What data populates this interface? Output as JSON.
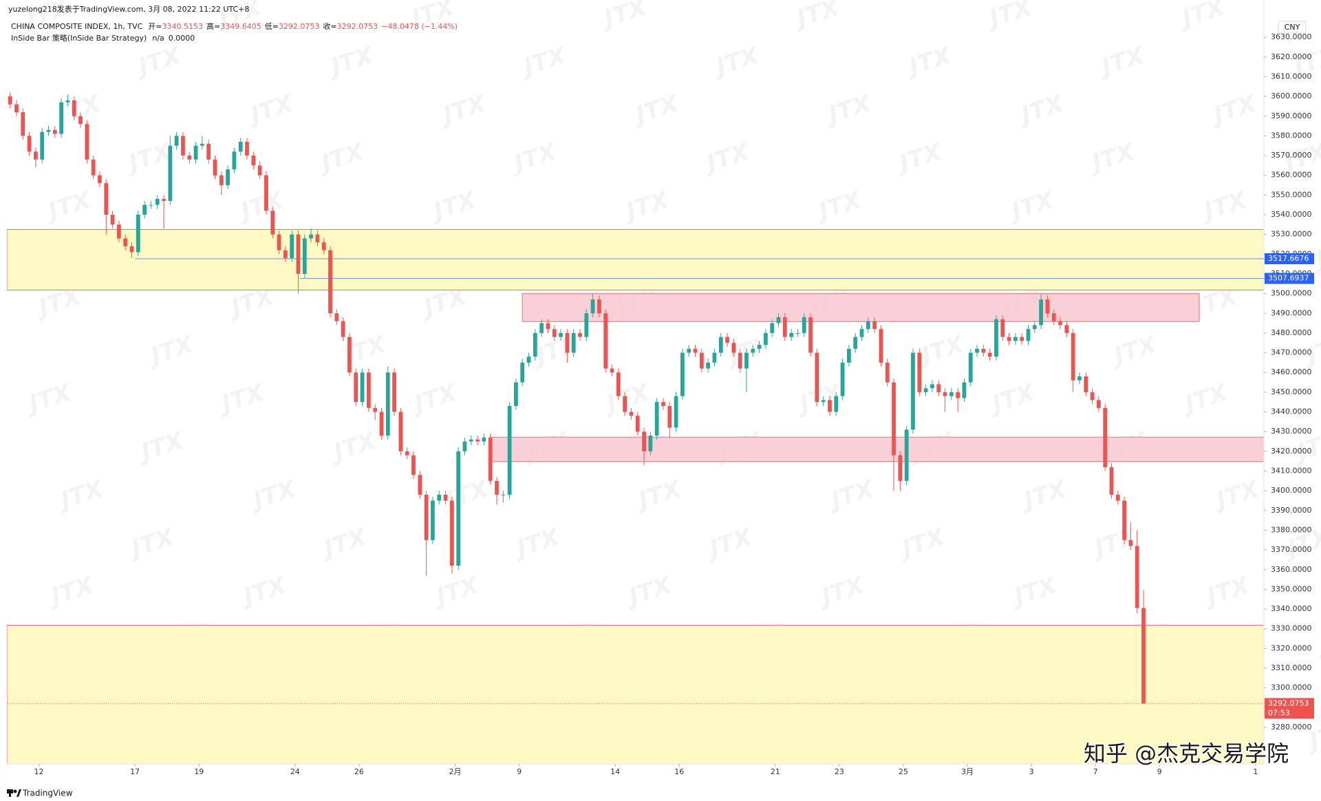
{
  "header": {
    "publisher": "yuzelong218发表于TradingView.com, 3月 08, 2022 11:22 UTC+8",
    "strategy": "InSide Bar 策略(InSide Bar Strategy)",
    "strategy_status": "n/a",
    "strategy_value": {
      "value": 0,
      "label": "0.0000"
    }
  },
  "footer": {
    "logo": "TradingView",
    "credit": "知乎 @杰克交易学院"
  },
  "chart_data": {
    "type": "candlestick",
    "symbol": "CHINA COMPOSITE INDEX, 1h, TVC",
    "ohlc_labels": [
      "开=",
      "高=",
      "低=",
      "收="
    ],
    "change_label": "−48.0478 (−1.44%)",
    "currency": "CNY",
    "countdown": "07:53",
    "watermark": "JTX",
    "up_color": "#26a69a",
    "down_color": "#ef5350",
    "grid": false,
    "ohlc": [
      [
        3600,
        3602,
        3594,
        3596
      ],
      [
        3596,
        3598,
        3590,
        3592
      ],
      [
        3592,
        3594,
        3578,
        3580
      ],
      [
        3580,
        3582,
        3570,
        3572
      ],
      [
        3572,
        3574,
        3564,
        3568
      ],
      [
        3568,
        3584,
        3566,
        3582
      ],
      [
        3582,
        3585,
        3580,
        3583
      ],
      [
        3583,
        3585,
        3579,
        3581
      ],
      [
        3581,
        3599,
        3579,
        3597
      ],
      [
        3597,
        3601,
        3595,
        3598
      ],
      [
        3598,
        3600,
        3588,
        3590
      ],
      [
        3590,
        3592,
        3584,
        3586
      ],
      [
        3586,
        3588,
        3566,
        3568
      ],
      [
        3568,
        3570,
        3558,
        3560
      ],
      [
        3560,
        3562,
        3554,
        3556
      ],
      [
        3556,
        3558,
        3530,
        3540
      ],
      [
        3540,
        3542,
        3533,
        3535
      ],
      [
        3535,
        3537,
        3526,
        3528
      ],
      [
        3528,
        3530,
        3522,
        3524
      ],
      [
        3524,
        3526,
        3518,
        3521
      ],
      [
        3521,
        3542,
        3519,
        3540
      ],
      [
        3540,
        3547,
        3538,
        3545
      ],
      [
        3545,
        3547,
        3543,
        3545
      ],
      [
        3545,
        3550,
        3543,
        3548
      ],
      [
        3548,
        3550,
        3533,
        3547
      ],
      [
        3547,
        3580,
        3545,
        3575
      ],
      [
        3575,
        3582,
        3573,
        3580
      ],
      [
        3580,
        3582,
        3568,
        3570
      ],
      [
        3570,
        3572,
        3566,
        3568
      ],
      [
        3568,
        3577,
        3566,
        3575
      ],
      [
        3575,
        3580,
        3573,
        3576
      ],
      [
        3576,
        3578,
        3566,
        3568
      ],
      [
        3568,
        3570,
        3558,
        3560
      ],
      [
        3560,
        3562,
        3550,
        3555
      ],
      [
        3555,
        3565,
        3553,
        3563
      ],
      [
        3563,
        3574,
        3561,
        3572
      ],
      [
        3572,
        3579,
        3570,
        3577
      ],
      [
        3577,
        3579,
        3568,
        3570
      ],
      [
        3570,
        3572,
        3563,
        3565
      ],
      [
        3565,
        3567,
        3558,
        3560
      ],
      [
        3560,
        3562,
        3540,
        3542
      ],
      [
        3542,
        3544,
        3528,
        3530
      ],
      [
        3530,
        3532,
        3520,
        3522
      ],
      [
        3522,
        3524,
        3516,
        3518
      ],
      [
        3518,
        3532,
        3516,
        3530
      ],
      [
        3530,
        3532,
        3500,
        3510
      ],
      [
        3510,
        3530,
        3508,
        3528
      ],
      [
        3528,
        3533,
        3526,
        3530
      ],
      [
        3530,
        3532,
        3524,
        3526
      ],
      [
        3526,
        3528,
        3520,
        3522
      ],
      [
        3522,
        3524,
        3488,
        3490
      ],
      [
        3490,
        3492,
        3484,
        3486
      ],
      [
        3486,
        3488,
        3476,
        3478
      ],
      [
        3478,
        3480,
        3458,
        3460
      ],
      [
        3460,
        3462,
        3443,
        3445
      ],
      [
        3445,
        3462,
        3443,
        3460
      ],
      [
        3460,
        3462,
        3440,
        3442
      ],
      [
        3442,
        3444,
        3436,
        3440
      ],
      [
        3440,
        3442,
        3426,
        3428
      ],
      [
        3428,
        3463,
        3426,
        3460
      ],
      [
        3460,
        3462,
        3438,
        3440
      ],
      [
        3440,
        3442,
        3418,
        3420
      ],
      [
        3420,
        3422,
        3416,
        3418
      ],
      [
        3418,
        3420,
        3406,
        3408
      ],
      [
        3408,
        3410,
        3396,
        3398
      ],
      [
        3398,
        3400,
        3357,
        3375
      ],
      [
        3375,
        3397,
        3373,
        3395
      ],
      [
        3395,
        3400,
        3393,
        3398
      ],
      [
        3398,
        3400,
        3393,
        3395
      ],
      [
        3395,
        3397,
        3358,
        3362
      ],
      [
        3362,
        3422,
        3360,
        3420
      ],
      [
        3420,
        3427,
        3418,
        3425
      ],
      [
        3425,
        3428,
        3423,
        3426
      ],
      [
        3426,
        3428,
        3423,
        3425
      ],
      [
        3425,
        3429,
        3423,
        3427
      ],
      [
        3427,
        3429,
        3403,
        3405
      ],
      [
        3405,
        3407,
        3393,
        3398
      ],
      [
        3398,
        3400,
        3394,
        3398
      ],
      [
        3398,
        3445,
        3396,
        3443
      ],
      [
        3443,
        3457,
        3441,
        3455
      ],
      [
        3455,
        3467,
        3453,
        3465
      ],
      [
        3465,
        3470,
        3463,
        3468
      ],
      [
        3468,
        3482,
        3466,
        3480
      ],
      [
        3480,
        3487,
        3478,
        3485
      ],
      [
        3485,
        3487,
        3480,
        3482
      ],
      [
        3482,
        3484,
        3476,
        3478
      ],
      [
        3478,
        3482,
        3476,
        3480
      ],
      [
        3480,
        3482,
        3465,
        3470
      ],
      [
        3470,
        3482,
        3468,
        3480
      ],
      [
        3480,
        3482,
        3476,
        3478
      ],
      [
        3478,
        3492,
        3476,
        3490
      ],
      [
        3490,
        3500,
        3488,
        3497
      ],
      [
        3497,
        3499,
        3488,
        3490
      ],
      [
        3490,
        3492,
        3460,
        3462
      ],
      [
        3462,
        3464,
        3458,
        3460
      ],
      [
        3460,
        3462,
        3446,
        3448
      ],
      [
        3448,
        3450,
        3438,
        3440
      ],
      [
        3440,
        3442,
        3436,
        3438
      ],
      [
        3438,
        3440,
        3428,
        3430
      ],
      [
        3430,
        3432,
        3413,
        3420
      ],
      [
        3420,
        3430,
        3418,
        3428
      ],
      [
        3428,
        3447,
        3426,
        3445
      ],
      [
        3445,
        3447,
        3441,
        3443
      ],
      [
        3443,
        3445,
        3427,
        3432
      ],
      [
        3432,
        3450,
        3430,
        3448
      ],
      [
        3448,
        3472,
        3446,
        3470
      ],
      [
        3470,
        3474,
        3468,
        3472
      ],
      [
        3472,
        3474,
        3468,
        3470
      ],
      [
        3470,
        3472,
        3460,
        3462
      ],
      [
        3462,
        3467,
        3460,
        3465
      ],
      [
        3465,
        3472,
        3463,
        3470
      ],
      [
        3470,
        3480,
        3468,
        3478
      ],
      [
        3478,
        3480,
        3473,
        3475
      ],
      [
        3475,
        3477,
        3468,
        3470
      ],
      [
        3470,
        3472,
        3460,
        3462
      ],
      [
        3462,
        3472,
        3450,
        3470
      ],
      [
        3470,
        3474,
        3468,
        3472
      ],
      [
        3472,
        3476,
        3470,
        3474
      ],
      [
        3474,
        3482,
        3472,
        3480
      ],
      [
        3480,
        3487,
        3478,
        3485
      ],
      [
        3485,
        3490,
        3483,
        3488
      ],
      [
        3488,
        3490,
        3476,
        3478
      ],
      [
        3478,
        3482,
        3476,
        3480
      ],
      [
        3480,
        3482,
        3478,
        3480
      ],
      [
        3480,
        3490,
        3478,
        3488
      ],
      [
        3488,
        3490,
        3468,
        3470
      ],
      [
        3470,
        3472,
        3443,
        3445
      ],
      [
        3445,
        3448,
        3443,
        3446
      ],
      [
        3446,
        3448,
        3438,
        3440
      ],
      [
        3440,
        3450,
        3438,
        3448
      ],
      [
        3448,
        3467,
        3446,
        3465
      ],
      [
        3465,
        3474,
        3463,
        3472
      ],
      [
        3472,
        3480,
        3470,
        3478
      ],
      [
        3478,
        3484,
        3476,
        3482
      ],
      [
        3482,
        3488,
        3480,
        3486
      ],
      [
        3486,
        3488,
        3480,
        3482
      ],
      [
        3482,
        3484,
        3463,
        3465
      ],
      [
        3465,
        3467,
        3453,
        3455
      ],
      [
        3455,
        3457,
        3400,
        3418
      ],
      [
        3418,
        3420,
        3400,
        3405
      ],
      [
        3405,
        3433,
        3403,
        3431
      ],
      [
        3431,
        3472,
        3429,
        3470
      ],
      [
        3470,
        3472,
        3448,
        3450
      ],
      [
        3450,
        3454,
        3448,
        3452
      ],
      [
        3452,
        3456,
        3450,
        3454
      ],
      [
        3454,
        3456,
        3448,
        3450
      ],
      [
        3450,
        3452,
        3440,
        3448
      ],
      [
        3448,
        3452,
        3446,
        3450
      ],
      [
        3450,
        3452,
        3440,
        3447
      ],
      [
        3447,
        3457,
        3445,
        3455
      ],
      [
        3455,
        3472,
        3453,
        3470
      ],
      [
        3470,
        3474,
        3468,
        3472
      ],
      [
        3472,
        3474,
        3468,
        3470
      ],
      [
        3470,
        3472,
        3466,
        3468
      ],
      [
        3468,
        3489,
        3466,
        3487
      ],
      [
        3487,
        3489,
        3476,
        3478
      ],
      [
        3478,
        3480,
        3474,
        3476
      ],
      [
        3476,
        3480,
        3474,
        3478
      ],
      [
        3478,
        3480,
        3474,
        3476
      ],
      [
        3476,
        3484,
        3474,
        3482
      ],
      [
        3482,
        3486,
        3480,
        3484
      ],
      [
        3484,
        3500,
        3482,
        3497
      ],
      [
        3497,
        3499,
        3488,
        3490
      ],
      [
        3490,
        3492,
        3484,
        3486
      ],
      [
        3486,
        3488,
        3482,
        3484
      ],
      [
        3484,
        3486,
        3478,
        3480
      ],
      [
        3480,
        3482,
        3450,
        3456
      ],
      [
        3456,
        3460,
        3454,
        3458
      ],
      [
        3458,
        3460,
        3448,
        3450
      ],
      [
        3450,
        3452,
        3444,
        3446
      ],
      [
        3446,
        3448,
        3440,
        3442
      ],
      [
        3442,
        3444,
        3410,
        3412
      ],
      [
        3412,
        3414,
        3396,
        3398
      ],
      [
        3398,
        3400,
        3393,
        3395
      ],
      [
        3395,
        3397,
        3373,
        3375
      ],
      [
        3375,
        3384,
        3370,
        3372
      ],
      [
        3372,
        3380,
        3338,
        3340.52
      ],
      [
        3340.5153,
        3349.6405,
        3292.0753,
        3292.0753
      ]
    ],
    "xlim": [
      -0.5,
      195.8
    ],
    "xticks": [
      {
        "value": 4.5,
        "label": "12"
      },
      {
        "value": 19.5,
        "label": "17"
      },
      {
        "value": 29.5,
        "label": "19"
      },
      {
        "value": 44.5,
        "label": "24"
      },
      {
        "value": 54.5,
        "label": "26"
      },
      {
        "value": 69.5,
        "label": "2月"
      },
      {
        "value": 79.5,
        "label": "9"
      },
      {
        "value": 94.5,
        "label": "14"
      },
      {
        "value": 104.5,
        "label": "16"
      },
      {
        "value": 119.5,
        "label": "21"
      },
      {
        "value": 129.5,
        "label": "23"
      },
      {
        "value": 139.5,
        "label": "25"
      },
      {
        "value": 149.5,
        "label": "3月"
      },
      {
        "value": 159.5,
        "label": "3"
      },
      {
        "value": 169.5,
        "label": "7"
      },
      {
        "value": 179.5,
        "label": "9"
      },
      {
        "value": 194.5,
        "label": "1"
      }
    ],
    "ylim": [
      3261.5,
      3648.9
    ],
    "yticks": [
      {
        "value": 3280,
        "label": "3280.0000"
      },
      {
        "value": 3290,
        "label": "3290.0000"
      },
      {
        "value": 3300,
        "label": "3300.0000"
      },
      {
        "value": 3310,
        "label": "3310.0000"
      },
      {
        "value": 3320,
        "label": "3320.0000"
      },
      {
        "value": 3330,
        "label": "3330.0000"
      },
      {
        "value": 3340,
        "label": "3340.0000"
      },
      {
        "value": 3350,
        "label": "3350.0000"
      },
      {
        "value": 3360,
        "label": "3360.0000"
      },
      {
        "value": 3370,
        "label": "3370.0000"
      },
      {
        "value": 3380,
        "label": "3380.0000"
      },
      {
        "value": 3390,
        "label": "3390.0000"
      },
      {
        "value": 3400,
        "label": "3400.0000"
      },
      {
        "value": 3410,
        "label": "3410.0000"
      },
      {
        "value": 3420,
        "label": "3420.0000"
      },
      {
        "value": 3430,
        "label": "3430.0000"
      },
      {
        "value": 3440,
        "label": "3440.0000"
      },
      {
        "value": 3450,
        "label": "3450.0000"
      },
      {
        "value": 3460,
        "label": "3460.0000"
      },
      {
        "value": 3470,
        "label": "3470.0000"
      },
      {
        "value": 3480,
        "label": "3480.0000"
      },
      {
        "value": 3490,
        "label": "3490.0000"
      },
      {
        "value": 3500,
        "label": "3500.0000"
      },
      {
        "value": 3510,
        "label": "3510.0000"
      },
      {
        "value": 3520,
        "label": "3520.0000"
      },
      {
        "value": 3530,
        "label": "3530.0000"
      },
      {
        "value": 3540,
        "label": "3540.0000"
      },
      {
        "value": 3550,
        "label": "3550.0000"
      },
      {
        "value": 3560,
        "label": "3560.0000"
      },
      {
        "value": 3570,
        "label": "3570.0000"
      },
      {
        "value": 3580,
        "label": "3580.0000"
      },
      {
        "value": 3590,
        "label": "3590.0000"
      },
      {
        "value": 3600,
        "label": "3600.0000"
      },
      {
        "value": 3610,
        "label": "3610.0000"
      },
      {
        "value": 3620,
        "label": "3620.0000"
      },
      {
        "value": 3630,
        "label": "3630.0000"
      }
    ],
    "zones": [
      {
        "top": 3532.5,
        "bottom": 3501.8,
        "start": -0.5,
        "end": 195.8,
        "color": "#fff9c4"
      },
      {
        "top": 3331.8,
        "bottom": 3261.5,
        "start": -0.5,
        "end": 195.8,
        "color": "#fff9c4"
      },
      {
        "top": 3500,
        "bottom": 3485.8,
        "start": 80,
        "end": 185.7,
        "color": "#f8c8d0"
      },
      {
        "top": 3427.2,
        "bottom": 3414.8,
        "start": 75.2,
        "end": 195.8,
        "color": "#f8c8d0"
      }
    ],
    "levels": [
      {
        "value": 3517.6676,
        "start": 19.5,
        "color": "#2962ff"
      },
      {
        "value": 3507.6937,
        "start": 45.2,
        "color": "#2962ff"
      }
    ]
  }
}
